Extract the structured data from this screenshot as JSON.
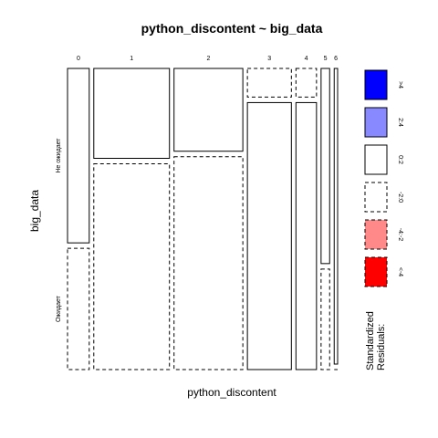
{
  "chart_data": {
    "type": "mosaic",
    "title": "python_discontent ~ big_data",
    "xlabel": "python_discontent",
    "ylabel": "big_data",
    "x_categories": [
      "0",
      "1",
      "2",
      "3",
      "4",
      "5",
      "6"
    ],
    "y_categories": [
      "Не ожидает",
      "Ожидает"
    ],
    "x_proportions": [
      0.076,
      0.265,
      0.241,
      0.154,
      0.072,
      0.03,
      0.012
    ],
    "columns": [
      {
        "category": "0",
        "top_share": 0.59,
        "top_residual": "0:2",
        "bottom_residual": "-2:0"
      },
      {
        "category": "1",
        "top_share": 0.304,
        "top_residual": "0:2",
        "bottom_residual": "-2:0"
      },
      {
        "category": "2",
        "top_share": 0.28,
        "top_residual": "0:2",
        "bottom_residual": "-2:0"
      },
      {
        "category": "3",
        "top_share": 0.097,
        "top_residual": "-2:0",
        "bottom_residual": "0:2"
      },
      {
        "category": "4",
        "top_share": 0.097,
        "top_residual": "-2:0",
        "bottom_residual": "0:2"
      },
      {
        "category": "5",
        "top_share": 0.66,
        "top_residual": "0:2",
        "bottom_residual": "-2:0"
      },
      {
        "category": "6",
        "top_share": 1.0,
        "top_residual": "0:2",
        "bottom_residual": "-2:0"
      }
    ],
    "legend": {
      "title_lines": [
        "Standardized",
        "Residuals:"
      ],
      "items": [
        {
          "label": ">4",
          "color": "#0000ff",
          "dashed": false
        },
        {
          "label": "2:4",
          "color": "#8888ff",
          "dashed": false
        },
        {
          "label": "0:2",
          "color": "#ffffff",
          "dashed": false
        },
        {
          "label": "-2:0",
          "color": "#ffffff",
          "dashed": true
        },
        {
          "label": "-4:-2",
          "color": "#ff8888",
          "dashed": true
        },
        {
          "label": "<-4",
          "color": "#ff0000",
          "dashed": true
        }
      ]
    }
  }
}
